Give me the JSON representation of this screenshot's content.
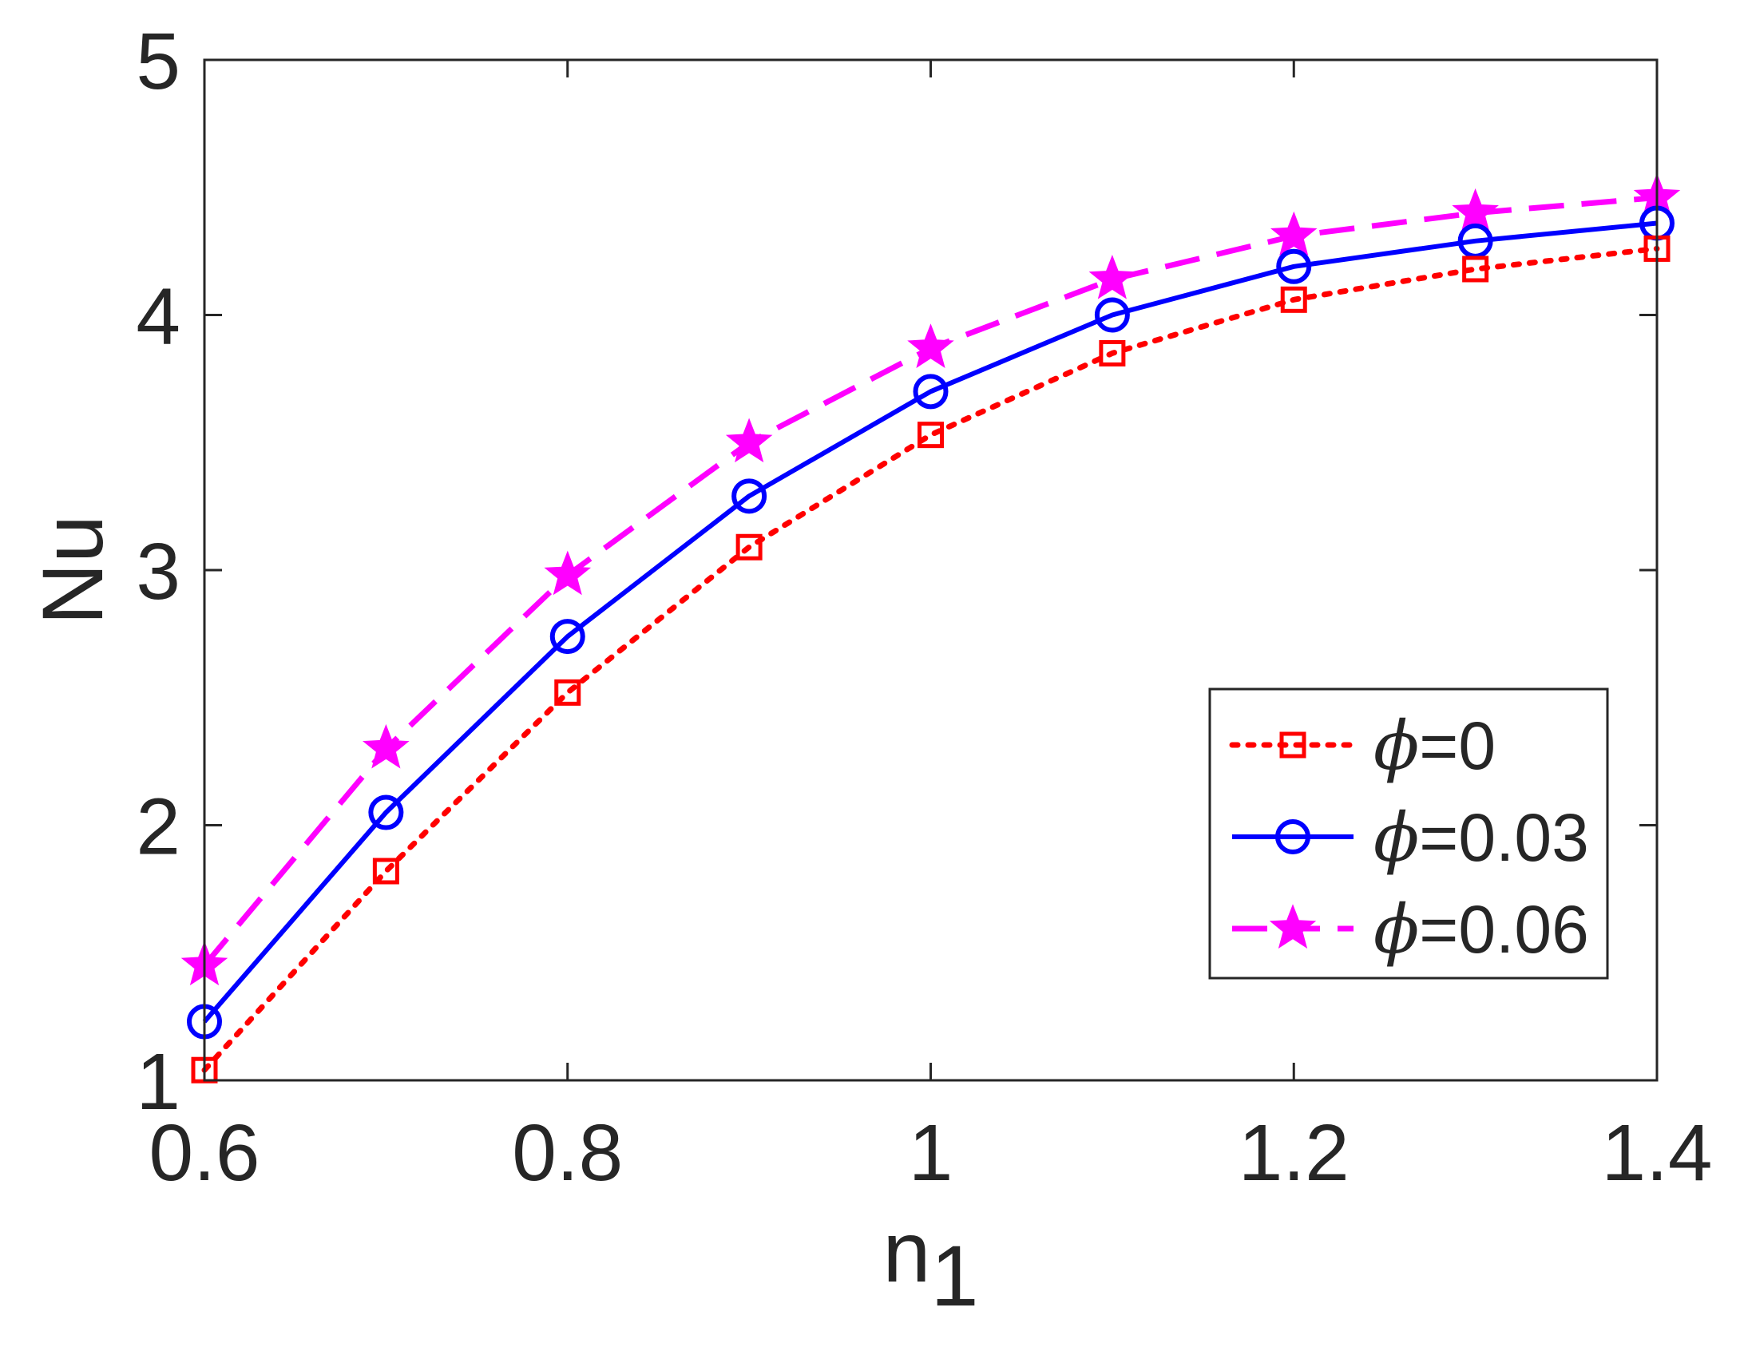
{
  "chart_data": {
    "type": "line",
    "title": "",
    "xlabel": "n",
    "xlabel_subscript": "1",
    "ylabel": "Nu",
    "xlim": [
      0.6,
      1.4
    ],
    "ylim": [
      1,
      5
    ],
    "xticks": [
      "0.6",
      "0.8",
      "1",
      "1.2",
      "1.4"
    ],
    "yticks": [
      "1",
      "2",
      "3",
      "4",
      "5"
    ],
    "grid": false,
    "legend_position": "lower-right",
    "x": [
      0.6,
      0.7,
      0.8,
      0.9,
      1.0,
      1.1,
      1.2,
      1.3,
      1.4
    ],
    "series": [
      {
        "name": "=0",
        "symbol": "ϕ",
        "color": "#ff0000",
        "line_style": "dotted",
        "marker": "square",
        "values": [
          1.04,
          1.82,
          2.52,
          3.09,
          3.53,
          3.85,
          4.06,
          4.18,
          4.26
        ]
      },
      {
        "name": "=0.03",
        "symbol": "ϕ",
        "color": "#0000ff",
        "line_style": "solid",
        "marker": "circle",
        "values": [
          1.23,
          2.05,
          2.74,
          3.29,
          3.7,
          4.0,
          4.19,
          4.29,
          4.36
        ]
      },
      {
        "name": "=0.06",
        "symbol": "ϕ",
        "color": "#ff00ff",
        "line_style": "dashed",
        "marker": "star",
        "values": [
          1.45,
          2.3,
          2.98,
          3.5,
          3.87,
          4.14,
          4.31,
          4.4,
          4.46
        ]
      }
    ]
  }
}
